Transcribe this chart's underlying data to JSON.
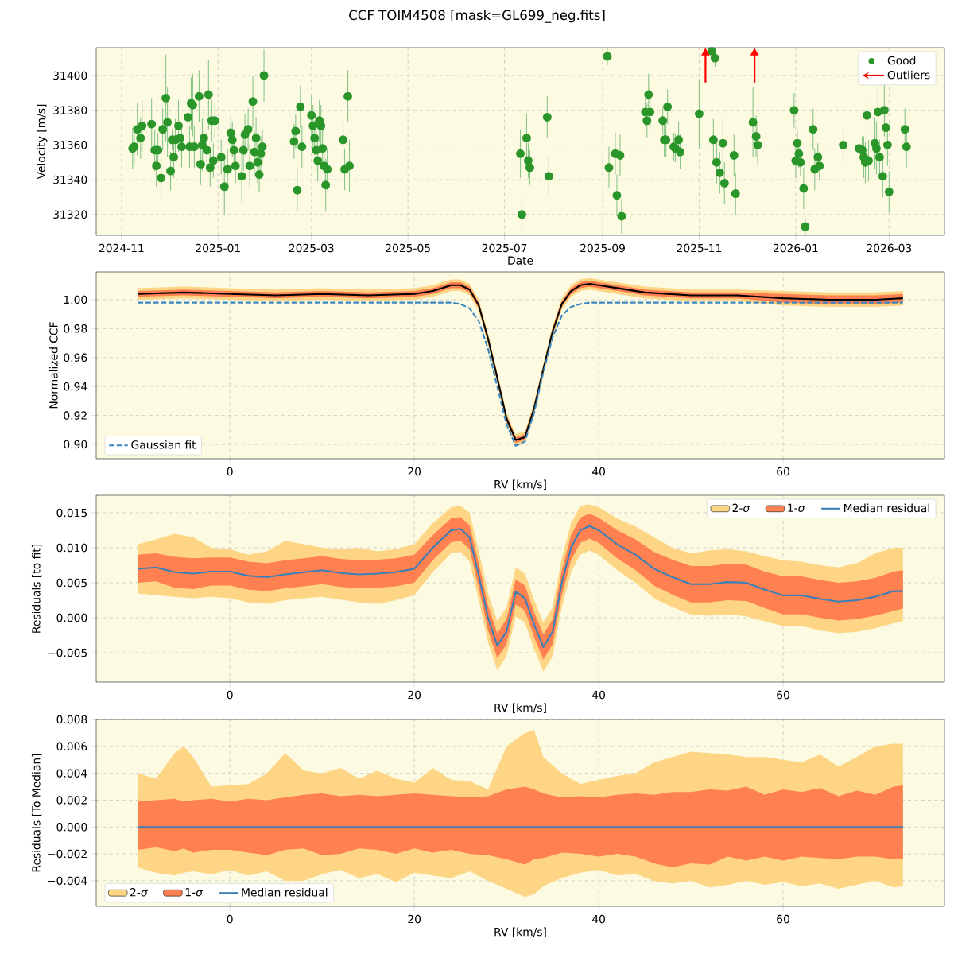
{
  "chart_data": [
    {
      "type": "scatter",
      "title": "CCF TOIM4508 [mask=GL699_neg.fits]",
      "xlabel": "Date",
      "ylabel": "Velocity [m/s]",
      "grid": true,
      "legend": "top right",
      "xlim": [
        "2024-10-16",
        "2026-04-05"
      ],
      "ylim": [
        31308,
        31416
      ],
      "xticks": [
        "2024-11",
        "2025-01",
        "2025-03",
        "2025-05",
        "2025-07",
        "2025-09",
        "2025-11",
        "2026-01",
        "2026-03"
      ],
      "yticks": [
        31320,
        31340,
        31360,
        31380,
        31400
      ],
      "series": [
        {
          "name": "Good",
          "color": "#2a962a",
          "marker": "circle",
          "x": [
            "2024-11-08",
            "2024-11-09",
            "2024-11-11",
            "2024-11-13",
            "2024-11-14",
            "2024-11-20",
            "2024-11-22",
            "2024-11-23",
            "2024-11-24",
            "2024-11-26",
            "2024-11-27",
            "2024-11-29",
            "2024-11-30",
            "2024-12-02",
            "2024-12-03",
            "2024-12-04",
            "2024-12-05",
            "2024-12-07",
            "2024-12-08",
            "2024-12-09",
            "2024-12-13",
            "2024-12-14",
            "2024-12-15",
            "2024-12-16",
            "2024-12-17",
            "2024-12-20",
            "2024-12-21",
            "2024-12-22",
            "2024-12-23",
            "2024-12-25",
            "2024-12-27",
            "2024-12-26",
            "2024-12-28",
            "2024-12-30",
            "2024-12-29",
            "2025-01-03",
            "2025-01-05",
            "2025-01-07",
            "2025-01-09",
            "2025-01-10",
            "2025-01-11",
            "2025-01-12",
            "2025-01-16",
            "2025-01-17",
            "2025-01-18",
            "2025-01-20",
            "2025-01-21",
            "2025-01-23",
            "2025-01-24",
            "2025-01-25",
            "2025-01-26",
            "2025-01-27",
            "2025-01-28",
            "2025-01-29",
            "2025-01-30",
            "2025-02-18",
            "2025-02-19",
            "2025-02-20",
            "2025-02-22",
            "2025-02-23",
            "2025-03-01",
            "2025-03-02",
            "2025-03-03",
            "2025-03-04",
            "2025-03-05",
            "2025-03-06",
            "2025-03-07",
            "2025-03-08",
            "2025-03-09",
            "2025-03-10",
            "2025-03-11",
            "2025-03-21",
            "2025-03-22",
            "2025-03-24",
            "2025-03-25",
            "2025-07-11",
            "2025-07-12",
            "2025-07-15",
            "2025-07-16",
            "2025-07-17",
            "2025-07-28",
            "2025-07-29",
            "2025-09-04",
            "2025-09-05",
            "2025-09-09",
            "2025-09-10",
            "2025-09-12",
            "2025-09-13",
            "2025-09-28",
            "2025-09-29",
            "2025-09-30",
            "2025-10-01",
            "2025-10-09",
            "2025-10-10",
            "2025-10-11",
            "2025-10-12",
            "2025-10-16",
            "2025-10-17",
            "2025-10-19",
            "2025-10-20",
            "2025-11-01",
            "2025-11-09",
            "2025-11-11",
            "2025-11-10",
            "2025-11-12",
            "2025-11-14",
            "2025-11-16",
            "2025-11-17",
            "2025-11-23",
            "2025-11-24",
            "2025-12-05",
            "2025-12-07",
            "2025-12-08",
            "2025-12-31",
            "2026-01-01",
            "2026-01-02",
            "2026-01-03",
            "2026-01-04",
            "2026-01-06",
            "2026-01-07",
            "2026-01-12",
            "2026-01-13",
            "2026-01-15",
            "2026-01-16",
            "2026-01-31",
            "2026-02-10",
            "2026-02-12",
            "2026-02-13",
            "2026-02-14",
            "2026-02-15",
            "2026-02-16",
            "2026-02-20",
            "2026-02-21",
            "2026-02-22",
            "2026-02-23",
            "2026-02-25",
            "2026-02-26",
            "2026-02-27",
            "2026-02-28",
            "2026-03-01",
            "2026-03-11",
            "2026-03-12"
          ],
          "values": [
            31358,
            31359,
            31369,
            31364,
            31371,
            31372,
            31357,
            31348,
            31357,
            31341,
            31369,
            31387,
            31373,
            31345,
            31363,
            31353,
            31363,
            31371,
            31364,
            31359,
            31376,
            31359,
            31384,
            31383,
            31359,
            31388,
            31349,
            31360,
            31364,
            31357,
            31347,
            31389,
            31374,
            31374,
            31351,
            31353,
            31336,
            31346,
            31367,
            31363,
            31357,
            31348,
            31342,
            31357,
            31366,
            31369,
            31348,
            31385,
            31356,
            31364,
            31350,
            31343,
            31355,
            31359,
            31400,
            31362,
            31368,
            31334,
            31382,
            31359,
            31377,
            31371,
            31364,
            31357,
            31351,
            31374,
            31371,
            31358,
            31348,
            31337,
            31346,
            31363,
            31346,
            31388,
            31348,
            31355,
            31320,
            31364,
            31351,
            31347,
            31376,
            31342,
            31411,
            31347,
            31355,
            31331,
            31354,
            31319,
            31379,
            31374,
            31389,
            31379,
            31374,
            31363,
            31363,
            31382,
            31359,
            31358,
            31363,
            31356,
            31378,
            31414,
            31410,
            31363,
            31350,
            31344,
            31361,
            31338,
            31354,
            31332,
            31373,
            31365,
            31360,
            31380,
            31351,
            31361,
            31355,
            31350,
            31335,
            31313,
            31369,
            31346,
            31353,
            31348,
            31360,
            31358,
            31357,
            31353,
            31350,
            31377,
            31351,
            31361,
            31358,
            31379,
            31353,
            31342,
            31380,
            31370,
            31360,
            31333,
            31369,
            31359
          ],
          "errors": [
            12,
            10,
            15,
            12,
            15,
            15,
            12,
            12,
            10,
            12,
            12,
            25,
            20,
            11,
            6,
            12,
            12,
            15,
            10,
            12,
            12,
            12,
            15,
            18,
            12,
            15,
            12,
            15,
            15,
            10,
            11,
            20,
            12,
            10,
            10,
            10,
            16,
            12,
            10,
            10,
            10,
            10,
            15,
            12,
            12,
            12,
            12,
            15,
            12,
            12,
            12,
            10,
            10,
            10,
            15,
            10,
            10,
            12,
            12,
            12,
            12,
            12,
            10,
            12,
            12,
            12,
            12,
            12,
            12,
            15,
            12,
            12,
            12,
            15,
            15,
            14,
            12,
            14,
            10,
            10,
            12,
            12,
            5,
            12,
            12,
            12,
            12,
            10,
            8,
            10,
            12,
            10,
            8,
            10,
            10,
            10,
            8,
            8,
            10,
            10,
            20,
            1,
            5,
            12,
            12,
            12,
            15,
            12,
            12,
            12,
            20,
            12,
            12,
            10,
            10,
            8,
            8,
            8,
            12,
            5,
            12,
            12,
            8,
            8,
            10,
            8,
            8,
            12,
            12,
            12,
            12,
            15,
            15,
            15,
            10,
            12,
            15,
            12,
            12,
            12,
            12,
            12
          ]
        },
        {
          "name": "Outliers",
          "color": "#ff0000",
          "marker": "triangle",
          "x": [
            "2025-11-05",
            "2025-12-06"
          ],
          "values": [
            31413,
            31413
          ],
          "errors": [
            [
              31396,
              31413
            ],
            [
              31396,
              31413
            ]
          ]
        }
      ]
    },
    {
      "type": "line",
      "xlabel": "RV [km/s]",
      "ylabel": "Normalized CCF",
      "grid": true,
      "legend": "bottom left",
      "xlim": [
        -14.5,
        77.5
      ],
      "ylim": [
        0.8901,
        1.0192
      ],
      "xticks": [
        0,
        20,
        40,
        60
      ],
      "yticks": [
        {
          "value": 0.9,
          "label": "0.90"
        },
        {
          "value": 0.92,
          "label": "0.92"
        },
        {
          "value": 0.94,
          "label": "0.94"
        },
        {
          "value": 0.96,
          "label": "0.96"
        },
        {
          "value": 0.98,
          "label": "0.98"
        },
        {
          "value": 1.0,
          "label": "1.00"
        }
      ],
      "x": [
        -10,
        -5,
        0,
        5,
        10,
        15,
        20,
        22,
        23,
        24,
        25,
        26,
        27,
        28,
        29,
        30,
        31,
        32,
        33,
        34,
        35,
        36,
        37,
        38,
        39,
        40,
        42,
        45,
        50,
        55,
        60,
        65,
        70,
        73
      ],
      "series": [
        {
          "color": "#fdd585",
          "values": [
            null,
            null,
            null,
            null,
            null,
            null,
            null,
            null,
            null,
            null,
            null,
            null,
            null,
            null,
            null,
            null,
            null,
            null,
            null,
            null,
            null,
            null,
            null,
            null,
            null,
            null,
            null,
            null,
            null,
            null,
            null,
            null,
            null,
            null
          ],
          "lower": [
            1.0,
            1.001,
            1.0,
            0.999,
            1.0,
            0.999,
            1.0,
            1.002,
            1.004,
            1.006,
            1.006,
            1.003,
            0.992,
            0.969,
            0.942,
            0.914,
            0.899,
            0.901,
            0.921,
            0.948,
            0.974,
            0.993,
            1.002,
            1.006,
            1.007,
            1.006,
            1.004,
            1.001,
            0.999,
            0.999,
            0.996,
            0.995,
            0.995,
            0.996
          ],
          "upper": [
            1.008,
            1.009,
            1.008,
            1.007,
            1.008,
            1.007,
            1.008,
            1.01,
            1.012,
            1.014,
            1.014,
            1.011,
            1.0,
            0.977,
            0.95,
            0.922,
            0.907,
            0.909,
            0.929,
            0.956,
            0.982,
            1.001,
            1.01,
            1.014,
            1.015,
            1.014,
            1.012,
            1.009,
            1.007,
            1.007,
            1.006,
            1.005,
            1.005,
            1.006
          ]
        },
        {
          "color": "#ff8050",
          "values": [
            null,
            null,
            null,
            null,
            null,
            null,
            null,
            null,
            null,
            null,
            null,
            null,
            null,
            null,
            null,
            null,
            null,
            null,
            null,
            null,
            null,
            null,
            null,
            null,
            null,
            null,
            null,
            null,
            null,
            null,
            null,
            null,
            null,
            null
          ],
          "lower": [
            1.002,
            1.003,
            1.002,
            1.001,
            1.002,
            1.001,
            1.002,
            1.004,
            1.006,
            1.008,
            1.008,
            1.005,
            0.994,
            0.971,
            0.944,
            0.916,
            0.901,
            0.903,
            0.923,
            0.95,
            0.976,
            0.995,
            1.004,
            1.008,
            1.009,
            1.008,
            1.006,
            1.003,
            1.001,
            1.001,
            0.998,
            0.997,
            0.997,
            0.998
          ],
          "upper": [
            1.006,
            1.007,
            1.006,
            1.005,
            1.006,
            1.005,
            1.006,
            1.008,
            1.01,
            1.012,
            1.012,
            1.009,
            0.998,
            0.975,
            0.948,
            0.92,
            0.905,
            0.907,
            0.927,
            0.954,
            0.98,
            0.999,
            1.008,
            1.012,
            1.013,
            1.012,
            1.01,
            1.007,
            1.005,
            1.005,
            1.004,
            1.003,
            1.003,
            1.004
          ]
        },
        {
          "color": "#000000",
          "values": [
            1.004,
            1.005,
            1.004,
            1.003,
            1.004,
            1.003,
            1.004,
            1.006,
            1.008,
            1.01,
            1.01,
            1.007,
            0.996,
            0.973,
            0.946,
            0.918,
            0.903,
            0.905,
            0.925,
            0.952,
            0.978,
            0.997,
            1.006,
            1.01,
            1.011,
            1.01,
            1.008,
            1.005,
            1.003,
            1.003,
            1.001,
            1.0,
            1.0,
            1.001
          ]
        },
        {
          "name": "Gaussian fit",
          "color": "#3a87c0",
          "line_style": "dashed",
          "values": [
            0.998,
            0.998,
            0.998,
            0.998,
            0.998,
            0.998,
            0.998,
            0.998,
            0.998,
            0.998,
            0.997,
            0.994,
            0.985,
            0.966,
            0.94,
            0.914,
            0.899,
            0.902,
            0.922,
            0.95,
            0.974,
            0.989,
            0.995,
            0.997,
            0.998,
            0.998,
            0.998,
            0.998,
            0.998,
            0.998,
            0.998,
            0.998,
            0.998,
            0.998
          ]
        }
      ]
    },
    {
      "type": "line",
      "xlabel": "RV [km/s]",
      "ylabel": "Residuals [to fit]",
      "grid": true,
      "legend": "top right",
      "xlim": [
        -14.5,
        77.5
      ],
      "ylim": [
        -0.0092,
        0.0175
      ],
      "xticks": [
        0,
        20,
        40,
        60
      ],
      "yticks": [
        {
          "value": -0.005,
          "label": "−0.005"
        },
        {
          "value": 0,
          "label": "0.000"
        },
        {
          "value": 0.005,
          "label": "0.005"
        },
        {
          "value": 0.01,
          "label": "0.010"
        },
        {
          "value": 0.015,
          "label": "0.015"
        }
      ],
      "x": [
        -10,
        -8,
        -6,
        -4,
        -2,
        0,
        2,
        4,
        6,
        8,
        10,
        12,
        14,
        16,
        18,
        20,
        22,
        24,
        25,
        26,
        27,
        28,
        29,
        30,
        31,
        32,
        33,
        34,
        35,
        36,
        37,
        38,
        39,
        40,
        42,
        44,
        46,
        48,
        50,
        52,
        54,
        56,
        58,
        60,
        62,
        64,
        66,
        68,
        70,
        72,
        73
      ],
      "series": [
        {
          "name": "2-*σ*",
          "color": "#fdd585",
          "values": [
            null,
            null,
            null,
            null,
            null,
            null,
            null,
            null,
            null,
            null,
            null,
            null,
            null,
            null,
            null,
            null,
            null,
            null,
            null,
            null,
            null,
            null,
            null,
            null,
            null,
            null,
            null,
            null,
            null,
            null,
            null,
            null,
            null,
            null,
            null,
            null,
            null,
            null,
            null,
            null,
            null,
            null,
            null,
            null,
            null,
            null,
            null,
            null,
            null,
            null,
            null
          ],
          "lower": [
            0.0035,
            0.0032,
            0.003,
            0.0028,
            0.003,
            0.0028,
            0.0022,
            0.002,
            0.0025,
            0.0028,
            0.003,
            0.0026,
            0.0022,
            0.002,
            0.0025,
            0.0032,
            0.0065,
            0.0092,
            0.0094,
            0.008,
            0.0025,
            -0.0035,
            -0.0075,
            -0.0055,
            0.0002,
            -0.0007,
            -0.0045,
            -0.0077,
            -0.0055,
            0.0015,
            0.0065,
            0.009,
            0.0096,
            0.009,
            0.0068,
            0.005,
            0.0028,
            0.0015,
            0.0005,
            0.0003,
            0.0005,
            0.0002,
            -0.0005,
            -0.0012,
            -0.0012,
            -0.0018,
            -0.0022,
            -0.002,
            -0.0015,
            -0.0008,
            -0.0005
          ],
          "upper": [
            0.0105,
            0.0112,
            0.012,
            0.0115,
            0.01,
            0.0098,
            0.009,
            0.0095,
            0.011,
            0.0105,
            0.01,
            0.0098,
            0.01,
            0.0095,
            0.0098,
            0.0105,
            0.0135,
            0.0158,
            0.016,
            0.015,
            0.0095,
            0.0035,
            -0.0005,
            0.0015,
            0.0072,
            0.0063,
            0.0025,
            -0.0007,
            0.0015,
            0.0085,
            0.0135,
            0.016,
            0.0162,
            0.0158,
            0.0142,
            0.013,
            0.0115,
            0.01,
            0.0092,
            0.0096,
            0.0098,
            0.0095,
            0.0088,
            0.0082,
            0.008,
            0.0075,
            0.0072,
            0.0078,
            0.0092,
            0.01,
            0.01
          ]
        },
        {
          "name": "1-*σ*",
          "color": "#ff8050",
          "values": [
            null,
            null,
            null,
            null,
            null,
            null,
            null,
            null,
            null,
            null,
            null,
            null,
            null,
            null,
            null,
            null,
            null,
            null,
            null,
            null,
            null,
            null,
            null,
            null,
            null,
            null,
            null,
            null,
            null,
            null,
            null,
            null,
            null,
            null,
            null,
            null,
            null,
            null,
            null,
            null,
            null,
            null,
            null,
            null,
            null,
            null,
            null,
            null,
            null,
            null,
            null
          ],
          "lower": [
            0.005,
            0.0052,
            0.0043,
            0.0041,
            0.0046,
            0.0046,
            0.004,
            0.0038,
            0.0042,
            0.0045,
            0.0048,
            0.0044,
            0.0042,
            0.0043,
            0.0045,
            0.005,
            0.0082,
            0.0108,
            0.011,
            0.0098,
            0.0042,
            -0.0018,
            -0.0058,
            -0.0038,
            0.0019,
            0.001,
            -0.0028,
            -0.006,
            -0.0038,
            0.0032,
            0.0082,
            0.0107,
            0.0113,
            0.0107,
            0.0085,
            0.0068,
            0.0046,
            0.0033,
            0.0022,
            0.0022,
            0.0025,
            0.0024,
            0.0014,
            0.0005,
            0.0005,
            0.0,
            -0.0004,
            -0.0002,
            0.0003,
            0.001,
            0.0013
          ],
          "upper": [
            0.009,
            0.0092,
            0.0087,
            0.0085,
            0.0086,
            0.0086,
            0.008,
            0.0078,
            0.0082,
            0.0085,
            0.0088,
            0.0084,
            0.0082,
            0.0083,
            0.0085,
            0.009,
            0.0118,
            0.0142,
            0.0144,
            0.0132,
            0.0078,
            0.0018,
            -0.0022,
            -0.0002,
            0.0055,
            0.0046,
            0.0008,
            -0.0024,
            -0.0002,
            0.0068,
            0.0118,
            0.0143,
            0.0149,
            0.0143,
            0.0125,
            0.0112,
            0.0094,
            0.0083,
            0.0074,
            0.0074,
            0.0077,
            0.0076,
            0.0066,
            0.0059,
            0.0059,
            0.0054,
            0.005,
            0.0052,
            0.0057,
            0.0066,
            0.0068
          ]
        },
        {
          "name": "Median residual",
          "color": "#3b7fb8",
          "values": [
            0.007,
            0.0072,
            0.0065,
            0.0063,
            0.0066,
            0.0066,
            0.006,
            0.0058,
            0.0062,
            0.0065,
            0.0068,
            0.0064,
            0.0062,
            0.0063,
            0.0065,
            0.007,
            0.01,
            0.0125,
            0.0127,
            0.0115,
            0.006,
            0.0,
            -0.004,
            -0.002,
            0.0037,
            0.0028,
            -0.001,
            -0.0042,
            -0.002,
            0.005,
            0.01,
            0.0125,
            0.0131,
            0.0125,
            0.0105,
            0.009,
            0.007,
            0.0058,
            0.0048,
            0.0048,
            0.0051,
            0.005,
            0.004,
            0.0032,
            0.0032,
            0.0027,
            0.0023,
            0.0025,
            0.003,
            0.0038,
            0.0038
          ]
        }
      ]
    },
    {
      "type": "line",
      "xlabel": "RV [km/s]",
      "ylabel": "Residuals [To Median]",
      "grid": true,
      "legend": "bottom left",
      "xlim": [
        -14.5,
        77.5
      ],
      "ylim": [
        -0.0059,
        0.008
      ],
      "xticks": [
        0,
        20,
        40,
        60
      ],
      "yticks": [
        {
          "value": -0.004,
          "label": "−0.004"
        },
        {
          "value": -0.002,
          "label": "−0.002"
        },
        {
          "value": 0,
          "label": "0.000"
        },
        {
          "value": 0.002,
          "label": "0.002"
        },
        {
          "value": 0.004,
          "label": "0.004"
        },
        {
          "value": 0.006,
          "label": "0.006"
        },
        {
          "value": 0.008,
          "label": "0.008"
        }
      ],
      "x": [
        -10,
        -8,
        -6,
        -5,
        -4,
        -2,
        0,
        2,
        4,
        6,
        8,
        10,
        12,
        14,
        16,
        18,
        20,
        22,
        24,
        26,
        28,
        30,
        32,
        33,
        34,
        36,
        38,
        40,
        42,
        44,
        46,
        48,
        50,
        52,
        54,
        56,
        58,
        60,
        62,
        64,
        66,
        68,
        70,
        72,
        73
      ],
      "series": [
        {
          "name": "2-*σ*",
          "color": "#fdd585",
          "values": [
            null,
            null,
            null,
            null,
            null,
            null,
            null,
            null,
            null,
            null,
            null,
            null,
            null,
            null,
            null,
            null,
            null,
            null,
            null,
            null,
            null,
            null,
            null,
            null,
            null,
            null,
            null,
            null,
            null,
            null,
            null,
            null,
            null,
            null,
            null,
            null,
            null,
            null,
            null,
            null,
            null,
            null,
            null,
            null,
            null
          ],
          "lower": [
            -0.003,
            -0.0034,
            -0.0036,
            -0.0034,
            -0.0033,
            -0.0035,
            -0.0032,
            -0.0036,
            -0.0033,
            -0.004,
            -0.004,
            -0.0035,
            -0.0032,
            -0.0038,
            -0.0035,
            -0.0041,
            -0.0034,
            -0.0036,
            -0.0038,
            -0.0033,
            -0.004,
            -0.0046,
            -0.0052,
            -0.005,
            -0.0044,
            -0.0038,
            -0.0034,
            -0.0032,
            -0.0036,
            -0.0035,
            -0.004,
            -0.0042,
            -0.004,
            -0.0045,
            -0.0043,
            -0.004,
            -0.0043,
            -0.0041,
            -0.0044,
            -0.0042,
            -0.0046,
            -0.0043,
            -0.004,
            -0.0045,
            -0.0044
          ],
          "upper": [
            0.004,
            0.0036,
            0.0055,
            0.006,
            0.0052,
            0.003,
            0.0031,
            0.0032,
            0.004,
            0.0055,
            0.0042,
            0.004,
            0.0044,
            0.0036,
            0.0042,
            0.0036,
            0.0033,
            0.0044,
            0.0035,
            0.0034,
            0.0028,
            0.006,
            0.007,
            0.0072,
            0.0052,
            0.004,
            0.0032,
            0.0035,
            0.0038,
            0.004,
            0.0048,
            0.0052,
            0.0056,
            0.0055,
            0.0054,
            0.0052,
            0.0052,
            0.005,
            0.0048,
            0.0054,
            0.0045,
            0.0052,
            0.006,
            0.0062,
            0.0062
          ]
        },
        {
          "name": "1-*σ*",
          "color": "#ff8050",
          "values": [
            null,
            null,
            null,
            null,
            null,
            null,
            null,
            null,
            null,
            null,
            null,
            null,
            null,
            null,
            null,
            null,
            null,
            null,
            null,
            null,
            null,
            null,
            null,
            null,
            null,
            null,
            null,
            null,
            null,
            null,
            null,
            null,
            null,
            null,
            null,
            null,
            null,
            null,
            null,
            null,
            null,
            null,
            null,
            null,
            null
          ],
          "lower": [
            -0.0017,
            -0.0015,
            -0.0018,
            -0.0016,
            -0.0019,
            -0.0017,
            -0.0017,
            -0.0019,
            -0.0021,
            -0.0017,
            -0.0016,
            -0.0021,
            -0.002,
            -0.0016,
            -0.0017,
            -0.002,
            -0.0016,
            -0.0019,
            -0.0017,
            -0.002,
            -0.0021,
            -0.0024,
            -0.0028,
            -0.0024,
            -0.0023,
            -0.0019,
            -0.002,
            -0.0022,
            -0.002,
            -0.0022,
            -0.0027,
            -0.003,
            -0.0027,
            -0.0028,
            -0.0022,
            -0.0025,
            -0.0022,
            -0.0025,
            -0.0022,
            -0.0023,
            -0.0024,
            -0.0022,
            -0.0022,
            -0.0024,
            -0.0024
          ],
          "upper": [
            0.0019,
            0.002,
            0.0021,
            0.0019,
            0.002,
            0.0021,
            0.0019,
            0.0021,
            0.002,
            0.0022,
            0.0024,
            0.0025,
            0.0023,
            0.0024,
            0.0023,
            0.0024,
            0.0025,
            0.0024,
            0.0023,
            0.0022,
            0.0023,
            0.0028,
            0.003,
            0.0028,
            0.0025,
            0.0022,
            0.0023,
            0.0022,
            0.0024,
            0.0025,
            0.0024,
            0.0026,
            0.0026,
            0.0028,
            0.0027,
            0.003,
            0.0024,
            0.0028,
            0.0026,
            0.0029,
            0.0023,
            0.0027,
            0.0024,
            0.003,
            0.0031
          ]
        },
        {
          "name": "Median residual",
          "color": "#3b7fb8",
          "values": [
            0,
            0,
            0,
            0,
            0,
            0,
            0,
            0,
            0,
            0,
            0,
            0,
            0,
            0,
            0,
            0,
            0,
            0,
            0,
            0,
            0,
            0,
            0,
            0,
            0,
            0,
            0,
            0,
            0,
            0,
            0,
            0,
            0,
            0,
            0,
            0,
            0,
            0,
            0,
            0,
            0,
            0,
            0,
            0,
            0
          ]
        }
      ]
    }
  ]
}
